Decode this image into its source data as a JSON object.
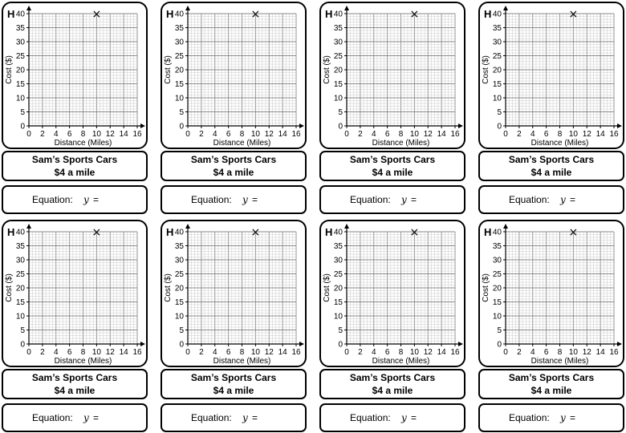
{
  "worksheet": {
    "card_letter": "H",
    "company_name": "Sam’s Sports Cars",
    "rate_text": "$4 a mile",
    "equation_label": "Equation:",
    "equation_var": "y",
    "equation_sign": "=",
    "marker_symbol": "×"
  },
  "chart_data": {
    "type": "scatter",
    "title": "",
    "xlabel": "Distance (Miles)",
    "ylabel": "Cost ($)",
    "xlim": [
      0,
      16
    ],
    "ylim": [
      0,
      40
    ],
    "x_ticks": [
      "0",
      "2",
      "4",
      "6",
      "8",
      "10",
      "12",
      "14",
      "16"
    ],
    "y_ticks": [
      "0",
      "5",
      "10",
      "15",
      "20",
      "25",
      "30",
      "35",
      "40"
    ],
    "grid": true,
    "minor_grid_x_step": 0.5,
    "minor_grid_y_step": 1,
    "points": [
      {
        "x": 10,
        "y": 40,
        "marker": "×"
      }
    ]
  },
  "cards": [
    {
      "id": 1
    },
    {
      "id": 2
    },
    {
      "id": 3
    },
    {
      "id": 4
    },
    {
      "id": 5
    },
    {
      "id": 6
    },
    {
      "id": 7
    },
    {
      "id": 8
    }
  ]
}
